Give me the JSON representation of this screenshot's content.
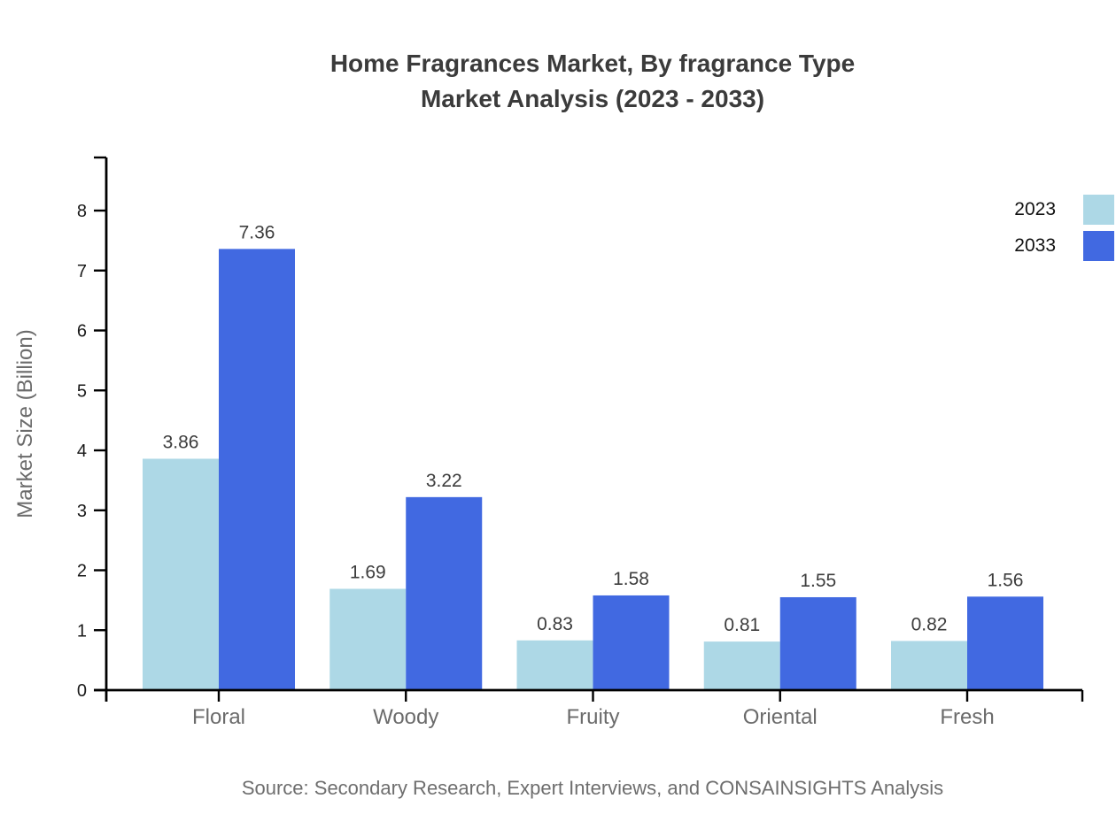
{
  "chart_data": {
    "type": "bar",
    "title_line1": "Home Fragrances Market, By fragrance Type",
    "title_line2": "Market Analysis (2023 - 2033)",
    "ylabel": "Market Size (Billion)",
    "xlabel": "",
    "categories": [
      "Floral",
      "Woody",
      "Fruity",
      "Oriental",
      "Fresh"
    ],
    "series": [
      {
        "name": "2023",
        "color": "#ADD8E6",
        "values": [
          3.86,
          1.69,
          0.83,
          0.81,
          0.82
        ]
      },
      {
        "name": "2033",
        "color": "#4169E1",
        "values": [
          7.36,
          3.22,
          1.58,
          1.55,
          1.56
        ]
      }
    ],
    "yticks": [
      0,
      1,
      2,
      3,
      4,
      5,
      6,
      7,
      8
    ],
    "ylim": [
      0,
      8.9
    ],
    "grid": false,
    "legend_position": "upper right",
    "source": "Source: Secondary Research, Expert Interviews, and CONSAINSIGHTS Analysis"
  },
  "colors": {
    "series_2023": "#ADD8E6",
    "series_2033": "#4169E1",
    "axis_line": "#000000",
    "title_text": "#3b3b3b",
    "tick_label": "#1a1a1a",
    "category_label": "#6b6b6b",
    "value_label": "#3d3d3d",
    "axis_title": "#6b6b6b",
    "source_text": "#6e6e6e"
  }
}
